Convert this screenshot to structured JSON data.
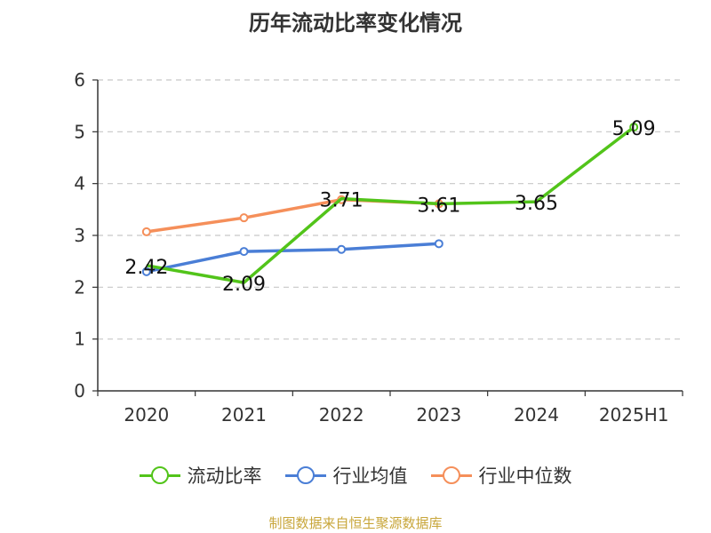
{
  "title": "历年流动比率变化情况",
  "source": "制图数据来自恒生聚源数据库",
  "chart_data": {
    "type": "line",
    "title": "历年流动比率变化情况",
    "categories": [
      "2020",
      "2021",
      "2022",
      "2023",
      "2024",
      "2025H1"
    ],
    "ylim": [
      0,
      6
    ],
    "yticks": [
      0,
      1,
      2,
      3,
      4,
      5,
      6
    ],
    "grid": true,
    "legend_position": "bottom",
    "series": [
      {
        "name": "流动比率",
        "color": "#52c41a",
        "values": [
          2.42,
          2.09,
          3.71,
          3.61,
          3.65,
          5.09
        ],
        "labels": [
          "2.42",
          "2.09",
          "3.71",
          "3.61",
          "3.65",
          "5.09"
        ],
        "markers_at": [
          5
        ]
      },
      {
        "name": "行业均值",
        "color": "#4a7ed6",
        "values": [
          2.3,
          2.69,
          2.73,
          2.84,
          null,
          null
        ]
      },
      {
        "name": "行业中位数",
        "color": "#f58f5a",
        "values": [
          3.07,
          3.34,
          3.69,
          3.61,
          null,
          null
        ]
      }
    ]
  }
}
